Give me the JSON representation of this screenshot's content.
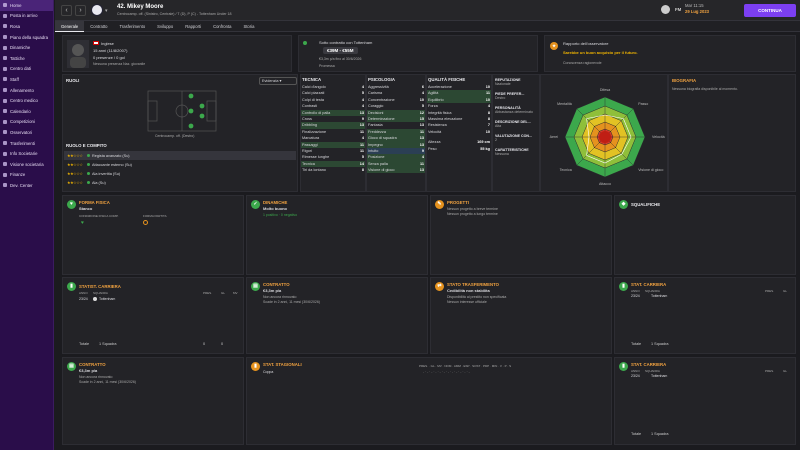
{
  "sidebar": {
    "items": [
      {
        "label": "Home"
      },
      {
        "label": "Posta in arrivo"
      },
      {
        "label": "Rosa"
      },
      {
        "label": "Piano della squadra"
      },
      {
        "label": "Dinamiche"
      },
      {
        "label": "Tattiche"
      },
      {
        "label": "Centro dati"
      },
      {
        "label": "Staff"
      },
      {
        "label": "Allenamento"
      },
      {
        "label": "Centro medico"
      },
      {
        "label": "Calendario"
      },
      {
        "label": "Competizioni"
      },
      {
        "label": "Osservatori"
      },
      {
        "label": "Trasferimenti"
      },
      {
        "label": "Info Societarie"
      },
      {
        "label": "Visione societaria"
      },
      {
        "label": "Finanze"
      },
      {
        "label": "Dev. Center"
      }
    ]
  },
  "header": {
    "player_name": "42. Mikey Moore",
    "player_sub": "Centrocamp. off. (Sinistro, Centrale) / T (D), P (C) - Tottenham Under 18",
    "date_line1": "Mar 11:15",
    "date_line2": "29 Lug 2023",
    "continue_label": "CONTINUA",
    "fm_label": "FM"
  },
  "tabs": [
    {
      "label": "Generale"
    },
    {
      "label": "Contratto"
    },
    {
      "label": "Trasferimento"
    },
    {
      "label": "Sviluppo"
    },
    {
      "label": "Rapporti"
    },
    {
      "label": "Confronta"
    },
    {
      "label": "Storia"
    }
  ],
  "profile": {
    "nationality": "Inglese",
    "age": "15 anni (11/8/2007)",
    "stats": "0 presenze / 0 gol",
    "note": "Nessuna presenza Naz. giovanile"
  },
  "contract": {
    "line1": "Sotto contratto con Tottenham",
    "value": "€39M - €55M",
    "line2": "€3,3m p/a fino al 30/6/2026",
    "line3": "Promessa"
  },
  "scout": {
    "title": "Rapporto dell'osservatore",
    "line1": "Sarebbe un buon acquisto per il futuro.",
    "line2": "Conoscenza ragionevole"
  },
  "roles": {
    "title": "RUOLI",
    "dropdown": "Evidenzia",
    "position": "Centrocamp. off. (Destro)",
    "role_title": "RUOLO E COMPITO",
    "list": [
      {
        "label": "Regista avanzato (Su)",
        "stars": 2
      },
      {
        "label": "Attaccante esterno (Su)",
        "stars": 2
      },
      {
        "label": "Ala invertita (Su)",
        "stars": 2
      },
      {
        "label": "Ala (Su)",
        "stars": 2
      }
    ]
  },
  "technical": {
    "title": "TECNICA",
    "rows": [
      {
        "name": "Calci d'angolo",
        "val": "4"
      },
      {
        "name": "Calci piazzati",
        "val": "5"
      },
      {
        "name": "Colpi di testa",
        "val": "4"
      },
      {
        "name": "Contrasti",
        "val": "4"
      },
      {
        "name": "Controllo di palla",
        "val": "13"
      },
      {
        "name": "Cross",
        "val": "9"
      },
      {
        "name": "Dribbling",
        "val": "13"
      },
      {
        "name": "Finalizzazione",
        "val": "11"
      },
      {
        "name": "Marcatura",
        "val": "4"
      },
      {
        "name": "Passaggi",
        "val": "11"
      },
      {
        "name": "Rigori",
        "val": "11"
      },
      {
        "name": "Rimesse lunghe",
        "val": "5"
      },
      {
        "name": "Tecnica",
        "val": "14"
      },
      {
        "name": "Tiri da lontano",
        "val": "8"
      }
    ]
  },
  "mental": {
    "title": "PSICOLOGIA",
    "rows": [
      {
        "name": "Aggressività",
        "val": "6"
      },
      {
        "name": "Carisma",
        "val": "4"
      },
      {
        "name": "Concentrazione",
        "val": "10"
      },
      {
        "name": "Coraggio",
        "val": "5"
      },
      {
        "name": "Decisioni",
        "val": "12"
      },
      {
        "name": "Determinazione",
        "val": "15"
      },
      {
        "name": "Fantasia",
        "val": "13"
      },
      {
        "name": "Freddezza",
        "val": "11"
      },
      {
        "name": "Gioco di squadra",
        "val": "13"
      },
      {
        "name": "Impegno",
        "val": "13"
      },
      {
        "name": "Intuito",
        "val": "9"
      },
      {
        "name": "Posizione",
        "val": "4"
      },
      {
        "name": "Senza palla",
        "val": "11"
      },
      {
        "name": "Visione di gioco",
        "val": "13"
      }
    ]
  },
  "physical": {
    "title": "QUALITÀ FISICHE",
    "rows": [
      {
        "name": "Accelerazione",
        "val": "10"
      },
      {
        "name": "Agilità",
        "val": "11"
      },
      {
        "name": "Equilibrio",
        "val": "10"
      },
      {
        "name": "Forza",
        "val": "4"
      },
      {
        "name": "Integrità fisica",
        "val": "8"
      },
      {
        "name": "Massima elevazione",
        "val": "8"
      },
      {
        "name": "Resistenza",
        "val": "7"
      },
      {
        "name": "Velocità",
        "val": "10"
      }
    ],
    "height_label": "Altezza",
    "height": "169 cm",
    "weight_label": "Peso",
    "weight": "55 kg"
  },
  "info": {
    "rep_title": "REPUTAZIONE",
    "rep_val": "Nazionale",
    "foot_title": "PIEDE PREFER...",
    "foot_val": "Destro",
    "pers_title": "PERSONALITÀ",
    "pers_val": "Abbastanza determinato",
    "desc_title": "DESCRIZIONE DEL...",
    "desc_val": "Alta",
    "val_title": "VALUTAZIONE CON...",
    "val_val": "2",
    "char_title": "CARATTERISTICHE",
    "char_val": "Nessuna"
  },
  "radar": {
    "labels": [
      "Difesa",
      "Passo",
      "Velocità",
      "Visione di gioco",
      "Attacco",
      "Tecnica",
      "Aerei",
      "Mentalità"
    ]
  },
  "bio": {
    "title": "BIOGRAFIA",
    "text": "Nessuna biografia disponibile al momento."
  },
  "cards": {
    "form": {
      "title": "FORMA FISICA",
      "val": "Stanco",
      "col1": "CONDIZIONE FISICA COMP.",
      "col2": "FORMA PARTITA"
    },
    "dyn": {
      "title": "DINAMICHE",
      "val": "Molto buono",
      "sub": "1 positivo · 0 negativo"
    },
    "proj": {
      "title": "PROGETTI",
      "line1": "Nessun progetto a breve termine",
      "line2": "Nessun progetto a lungo termine"
    },
    "squal": {
      "title": "SQUALIFICHE"
    },
    "career1": {
      "title": "STATIST. CARRIERA",
      "col_year": "ANNO",
      "col_team": "SQUADRA",
      "col_pres": "PRES.",
      "col_gol": "GL",
      "col_media": "MV",
      "year": "23/24",
      "team": "Tottenham",
      "pres": "0",
      "gol": "0",
      "total_label": "Totale",
      "total_team": "1 Squadra",
      "tot_pres": "0",
      "tot_gol": "0"
    },
    "contract2": {
      "title": "CONTRATTO",
      "val": "€3,3m p/a",
      "line1": "Non ancora rinnovato",
      "line2": "Scade in 2 anni, 11 mesi (30/6/2026)"
    },
    "transfer": {
      "title": "STATO TRASFERIMENTO",
      "val": "Cedibilità non stabilita",
      "line1": "Disponibilità al prestito non specificata",
      "line2": "Nessun interesse ufficiale"
    },
    "career2": {
      "title": "STAT. CARRIERA",
      "col_year": "ANNO",
      "col_team": "SQUADRA",
      "col_pres": "PRES.",
      "col_gol": "GL",
      "year": "23/24",
      "team": "Tottenham",
      "total_label": "Totale",
      "total_team": "1 Squadra"
    },
    "contract3": {
      "title": "CONTRATTO",
      "val": "€3,3m p/a",
      "line1": "Non ancora rinnovato",
      "line2": "Scade in 2 anni, 11 mesi (30/6/2026)"
    },
    "season": {
      "title": "STAT. STAGIONALI",
      "val": "Coppa",
      "cols": "PRES. · GL · MV · NOM · AMM · ESP · SOST · PDP · MIN · V · P · S"
    },
    "career3": {
      "title": "STAT. CARRIERA",
      "col_year": "ANNO",
      "col_team": "SQUADRA",
      "col_pres": "PRES.",
      "col_gol": "GL",
      "year": "23/24",
      "team": "Tottenham",
      "total_label": "Totale",
      "total_team": "1 Squadra"
    }
  },
  "colors": {
    "accent": "#7c3ff2",
    "sidebar": "#2a0d4a",
    "green": "#3ca84c",
    "orange": "#e5921e",
    "date_hl": "#f2a340"
  }
}
